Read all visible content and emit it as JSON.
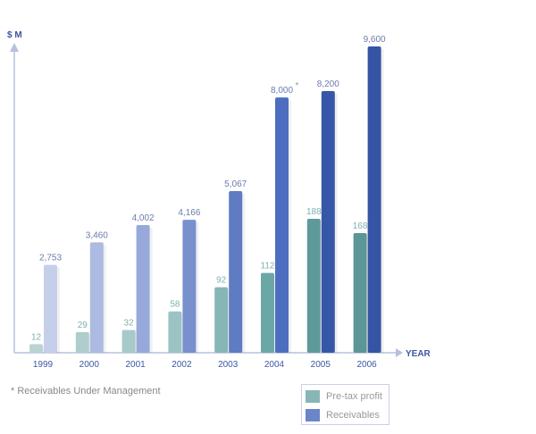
{
  "chart_data": {
    "type": "bar",
    "ylabel": "$ M",
    "xlabel": "YEAR",
    "categories": [
      "1999",
      "2000",
      "2001",
      "2002",
      "2003",
      "2004",
      "2005",
      "2006"
    ],
    "series": [
      {
        "name": "Pre-tax profit",
        "values": [
          12,
          29,
          32,
          58,
          92,
          112,
          188,
          168
        ],
        "labels": [
          "12",
          "29",
          "32",
          "58",
          "92",
          "112",
          "188",
          "168"
        ],
        "colors": [
          "#b9d3d3",
          "#afcdcd",
          "#a7c9c9",
          "#9cc3c3",
          "#86b6b6",
          "#6ca7a7",
          "#5e9a9a",
          "#5c9696"
        ],
        "legend_color": "#88b6b6",
        "label_color": "#7fb0b0"
      },
      {
        "name": "Receivables",
        "values": [
          2753,
          3460,
          4002,
          4166,
          5067,
          8000,
          8200,
          9600
        ],
        "labels": [
          "2,753",
          "3,460",
          "4,002",
          "4,166",
          "5,067",
          "8,000",
          "8,200",
          "9,600"
        ],
        "colors": [
          "#c6cfea",
          "#adbbe2",
          "#97a9da",
          "#7890cc",
          "#5f7bc2",
          "#4d6ec0",
          "#3656a8",
          "#3554a5"
        ],
        "legend_color": "#6a86c8",
        "label_color": "#6b7cae"
      }
    ],
    "annotations": [
      {
        "category": "2004",
        "series": "Receivables",
        "text": "*"
      }
    ],
    "footnote": "* Receivables Under Management",
    "legend_position": "bottom-right"
  }
}
